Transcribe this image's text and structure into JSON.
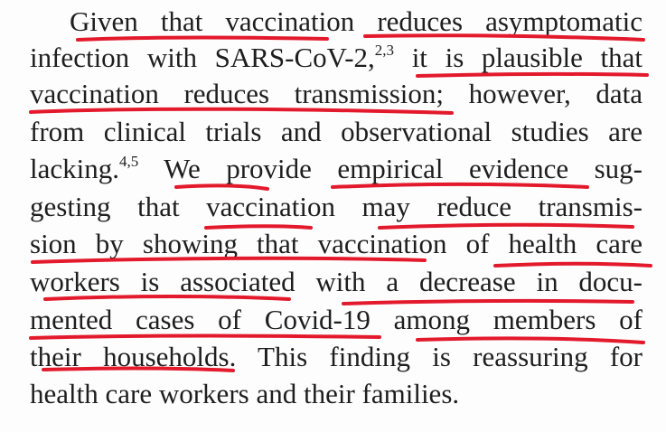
{
  "paragraph": {
    "lines": [
      {
        "text": "Given that vaccination reduces asymptomatic"
      },
      {
        "text": "infection with SARS-CoV-2,",
        "sup": "2,3",
        "tail": " it is plausible that"
      },
      {
        "text": "vaccination reduces transmission; however, data"
      },
      {
        "text": "from clinical trials and observational studies are"
      },
      {
        "text": "lacking.",
        "sup": "4,5",
        "tail": " We provide empirical evidence sug-"
      },
      {
        "text": "gesting that vaccination may reduce transmis-"
      },
      {
        "text": "sion by showing that vaccination of health care"
      },
      {
        "text": "workers is associated with a decrease in docu-"
      },
      {
        "text": "mented cases of Covid-19 among members of"
      },
      {
        "text": "their households. This finding is reassuring for"
      },
      {
        "text": "health care workers and their families."
      }
    ]
  },
  "annotation": {
    "type": "handwritten-underline",
    "color": "#e3192c"
  }
}
